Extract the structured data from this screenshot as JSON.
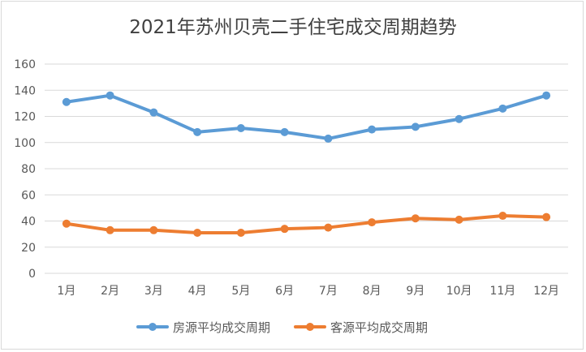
{
  "chart_data": {
    "type": "line",
    "title": "2021年苏州贝壳二手住宅成交周期趋势",
    "categories": [
      "1月",
      "2月",
      "3月",
      "4月",
      "5月",
      "6月",
      "7月",
      "8月",
      "9月",
      "10月",
      "11月",
      "12月"
    ],
    "ylim": [
      0,
      160
    ],
    "yticks": [
      "0",
      "20",
      "40",
      "60",
      "80",
      "100",
      "120",
      "140",
      "160"
    ],
    "grid": true,
    "legend_position": "bottom",
    "series": [
      {
        "name": "房源平均成交周期",
        "color": "#5b9bd5",
        "values": [
          131,
          136,
          123,
          108,
          111,
          108,
          103,
          110,
          112,
          118,
          126,
          136
        ]
      },
      {
        "name": "客源平均成交周期",
        "color": "#ed7d31",
        "values": [
          38,
          33,
          33,
          31,
          31,
          34,
          35,
          39,
          42,
          41,
          44,
          43
        ]
      }
    ]
  }
}
